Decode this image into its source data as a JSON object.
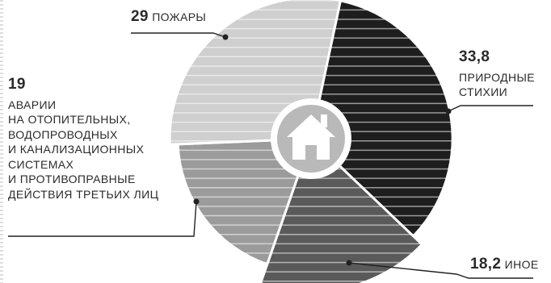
{
  "chart_data": {
    "type": "pie",
    "slices": [
      {
        "value": 33.8,
        "number": "33,8",
        "label": "ПРИРОДНЫЕ СТИХИИ",
        "color": "#1e1e1e"
      },
      {
        "value": 18.2,
        "number": "18,2",
        "label": "ИНОЕ",
        "color": "#5a5a5a"
      },
      {
        "value": 19,
        "number": "19",
        "label": "АВАРИИ НА ОТОПИТЕЛЬНЫХ, ВОДОПРОВОДНЫХ И КАНАЛИЗАЦИОННЫХ СИСТЕМАХ И ПРОТИВОПРАВНЫЕ ДЕЙСТВИЯ ТРЕТЬИХ ЛИЦ",
        "color": "#9b9b9b"
      },
      {
        "value": 29,
        "number": "29",
        "label": "ПОЖАРЫ",
        "color": "#cfcfcf"
      }
    ],
    "center_icon": "house-icon"
  },
  "labels": {
    "fires_number": "29",
    "fires_text": "ПОЖАРЫ",
    "nature_number": "33,8",
    "nature_line1": "ПРИРОДНЫЕ",
    "nature_line2": "СТИХИИ",
    "accidents_number": "19",
    "accidents_lines": [
      "АВАРИИ",
      "НА ОТОПИТЕЛЬНЫХ,",
      "ВОДОПРОВОДНЫХ",
      "И КАНАЛИЗАЦИОННЫХ",
      "СИСТЕМАХ",
      "И ПРОТИВОПРАВНЫЕ",
      "ДЕЙСТВИЯ ТРЕТЬИХ ЛИЦ"
    ],
    "other_number": "18,2",
    "other_text": "ИНОЕ"
  }
}
